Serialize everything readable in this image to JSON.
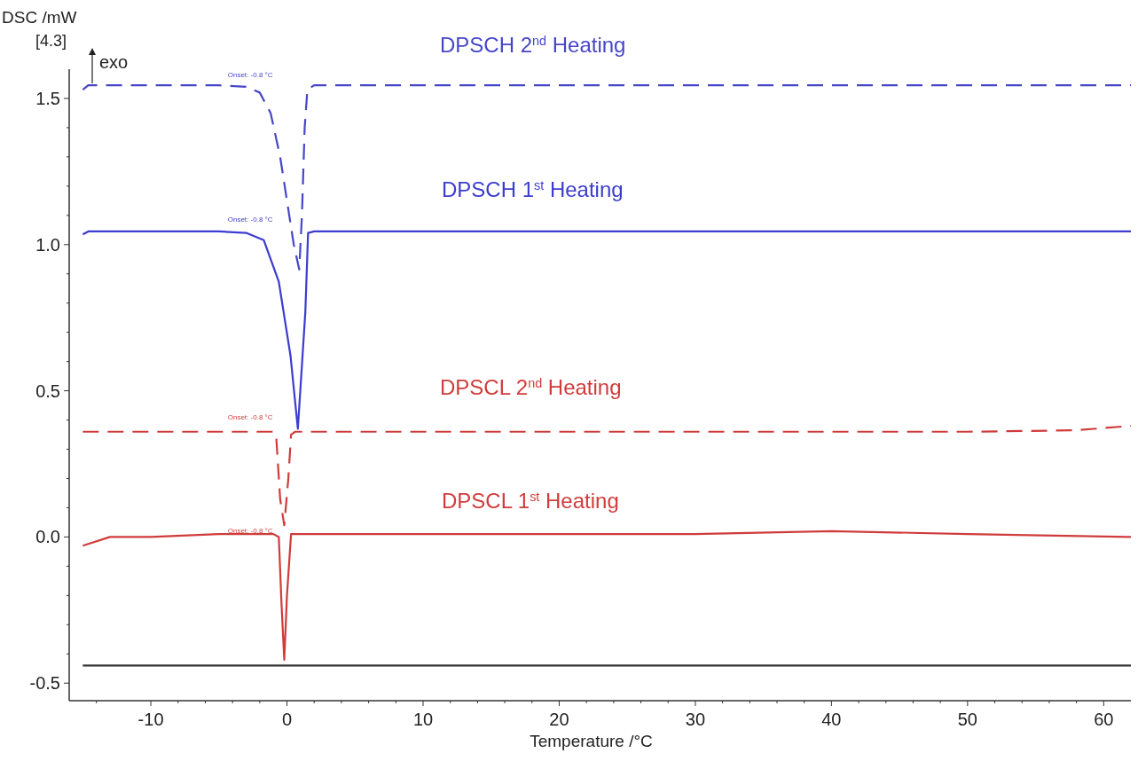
{
  "chart_data": {
    "type": "line",
    "xlabel": "Temperature /°C",
    "ylabel": "DSC /mW",
    "xlim": [
      -16,
      62
    ],
    "ylim": [
      -0.56,
      1.6
    ],
    "xticks": [
      {
        "value": -14,
        "label": null
      },
      -10,
      {
        "value": -8,
        "label": null
      },
      {
        "value": -6,
        "label": null
      },
      {
        "value": -4,
        "label": null
      },
      {
        "value": -2,
        "label": null
      },
      0,
      {
        "value": 2,
        "label": null
      },
      {
        "value": 4,
        "label": null
      },
      {
        "value": 6,
        "label": null
      },
      {
        "value": 8,
        "label": null
      },
      10,
      {
        "value": 12,
        "label": null
      },
      {
        "value": 14,
        "label": null
      },
      {
        "value": 16,
        "label": null
      },
      {
        "value": 18,
        "label": null
      },
      20,
      {
        "value": 22,
        "label": null
      },
      {
        "value": 24,
        "label": null
      },
      {
        "value": 26,
        "label": null
      },
      {
        "value": 28,
        "label": null
      },
      30,
      {
        "value": 32,
        "label": null
      },
      {
        "value": 34,
        "label": null
      },
      {
        "value": 36,
        "label": null
      },
      {
        "value": 38,
        "label": null
      },
      40,
      {
        "value": 42,
        "label": null
      },
      {
        "value": 44,
        "label": null
      },
      {
        "value": 46,
        "label": null
      },
      {
        "value": 48,
        "label": null
      },
      50,
      {
        "value": 52,
        "label": null
      },
      {
        "value": 54,
        "label": null
      },
      {
        "value": 56,
        "label": null
      },
      {
        "value": 58,
        "label": null
      },
      60
    ],
    "yticks": [
      -0.5,
      {
        "value": -0.4,
        "label": null
      },
      {
        "value": -0.3,
        "label": null
      },
      {
        "value": -0.2,
        "label": null
      },
      {
        "value": -0.1,
        "label": null
      },
      {
        "value": 0,
        "label": "0.0"
      },
      {
        "value": 0.1,
        "label": null
      },
      {
        "value": 0.2,
        "label": null
      },
      {
        "value": 0.3,
        "label": null
      },
      {
        "value": 0.4,
        "label": null
      },
      0.5,
      {
        "value": 0.6,
        "label": null
      },
      {
        "value": 0.7,
        "label": null
      },
      {
        "value": 0.8,
        "label": null
      },
      {
        "value": 0.9,
        "label": null
      },
      {
        "value": 1,
        "label": "1.0"
      },
      {
        "value": 1.1,
        "label": null
      },
      {
        "value": 1.2,
        "label": null
      },
      {
        "value": 1.3,
        "label": null
      },
      {
        "value": 1.4,
        "label": null
      },
      1.5
    ],
    "grid": false,
    "legend": false,
    "series": [
      {
        "name": "DPSCH  2$^{nd}$ Heating",
        "color": "#4646c8",
        "line_style": "dashed",
        "x": [
          -15,
          -14.6,
          -10,
          -5,
          -3,
          -2,
          -1.2,
          -0.5,
          0,
          0.5,
          0.9,
          1.1,
          1.3,
          1.5,
          2,
          10,
          20,
          30,
          40,
          50,
          62
        ],
        "values": [
          1.53,
          1.545,
          1.545,
          1.545,
          1.54,
          1.52,
          1.45,
          1.3,
          1.15,
          1.0,
          0.915,
          1.1,
          1.4,
          1.53,
          1.545,
          1.545,
          1.545,
          1.545,
          1.545,
          1.545,
          1.545
        ]
      },
      {
        "name": "DPSCH 1$^{st}$ Heating",
        "color": "#3c3cd0",
        "line_style": "solid",
        "x": [
          -15,
          -14.6,
          -10,
          -5,
          -3,
          -1.7,
          -0.6,
          0.26,
          0.8,
          1.35,
          1.55,
          2,
          10,
          20,
          30,
          40,
          50,
          62
        ],
        "values": [
          1.035,
          1.045,
          1.045,
          1.045,
          1.04,
          1.015,
          0.873,
          0.62,
          0.37,
          0.77,
          1.04,
          1.045,
          1.045,
          1.045,
          1.045,
          1.045,
          1.045,
          1.045
        ]
      },
      {
        "name": "DPSCL  2$^{nd}$ Heating",
        "color": "#d03c3c",
        "line_style": "dashed",
        "x": [
          -15,
          -10,
          -5,
          -1,
          -0.8,
          -0.5,
          -0.2,
          0.1,
          0.3,
          0.6,
          10,
          20,
          30,
          40,
          50,
          58,
          62
        ],
        "values": [
          0.36,
          0.36,
          0.36,
          0.36,
          0.35,
          0.13,
          0.04,
          0.2,
          0.35,
          0.36,
          0.36,
          0.36,
          0.36,
          0.36,
          0.36,
          0.365,
          0.38
        ]
      },
      {
        "name": "DPSCL 1$^{st}$ Heating",
        "color": "#d03c3c",
        "line_style": "solid",
        "x": [
          -15,
          -13,
          -10,
          -5,
          -1,
          -0.6,
          -0.4,
          -0.2,
          0,
          0.3,
          0.6,
          10,
          20,
          30,
          40,
          50,
          62
        ],
        "values": [
          -0.03,
          0.0,
          0.0,
          0.01,
          0.01,
          0.0,
          -0.23,
          -0.42,
          -0.2,
          0.01,
          0.01,
          0.01,
          0.01,
          0.01,
          0.02,
          0.01,
          0.0
        ]
      },
      {
        "color": "#303030",
        "line_style": "solid",
        "x": [
          -15,
          62
        ],
        "values": [
          -0.44,
          -0.44
        ]
      }
    ],
    "annotations": [
      "[4.3]",
      "exo",
      "Onset: -0.8 °C",
      "Onset: -0.8 °C",
      "Onset: -0.8 °C",
      "Onset: -0.8 °C"
    ]
  }
}
